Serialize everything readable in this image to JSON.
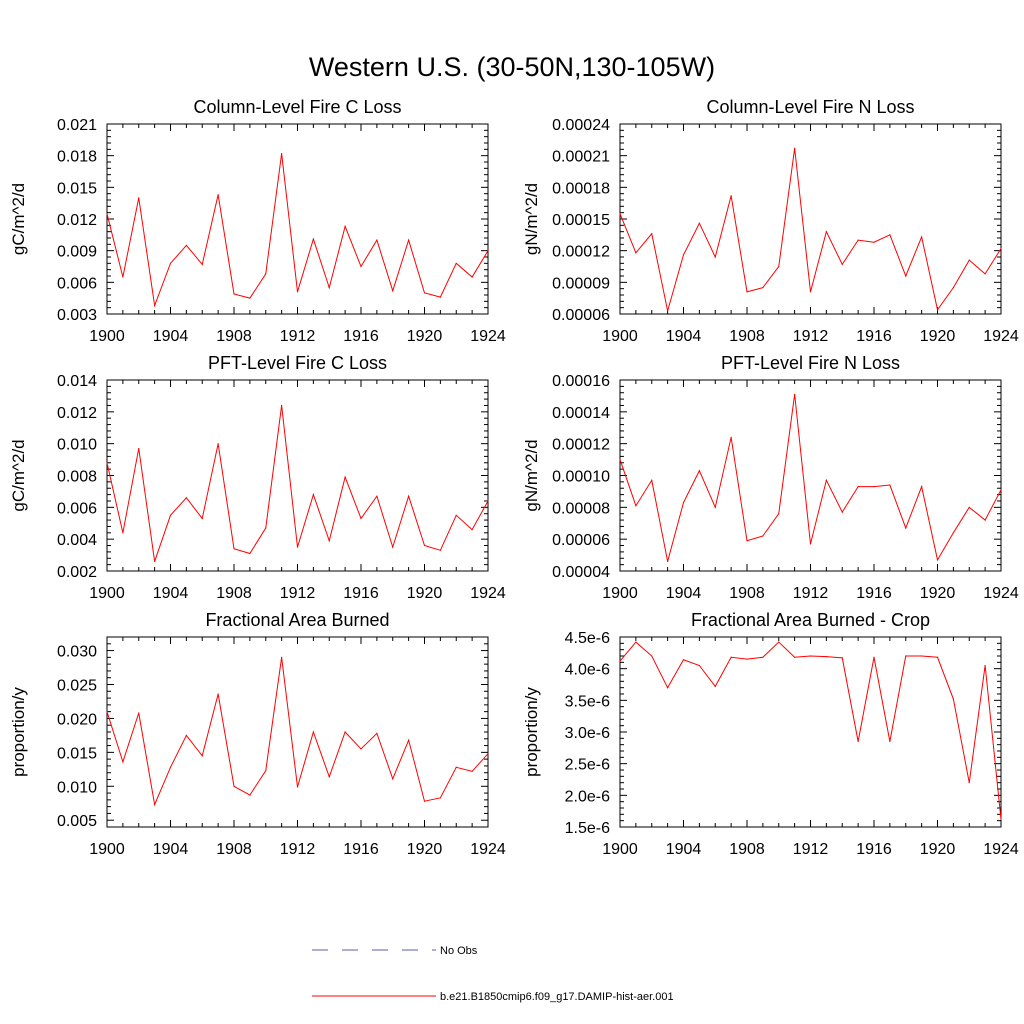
{
  "figure": {
    "title": "Western U.S. (30-50N,130-105W)"
  },
  "legend": {
    "entries": [
      {
        "label": "No Obs",
        "color": "#5b5ba8",
        "dashed": true
      },
      {
        "label": "b.e21.B1850cmip6.f09_g17.DAMIP-hist-aer.001",
        "color": "#ff0000",
        "dashed": false
      }
    ]
  },
  "colors": {
    "series": "#ff0000",
    "axes": "#000000"
  },
  "chart_data": [
    {
      "type": "line",
      "title": "Column-Level Fire C Loss",
      "ylabel": "gC/m^2/d",
      "xlabel": "",
      "xlim": [
        1900,
        1924
      ],
      "ylim": [
        0.003,
        0.021
      ],
      "x_ticks": [
        1900,
        1904,
        1908,
        1912,
        1916,
        1920,
        1924
      ],
      "x_tick_labels": [
        "1900",
        "1904",
        "1908",
        "1912",
        "1916",
        "1920",
        "1924"
      ],
      "y_ticks": [
        0.003,
        0.006,
        0.009,
        0.012,
        0.015,
        0.018,
        0.021
      ],
      "y_tick_labels": [
        "0.003",
        "0.006",
        "0.009",
        "0.012",
        "0.015",
        "0.018",
        "0.021"
      ],
      "series": [
        {
          "name": "b.e21.B1850cmip6.f09_g17.DAMIP-hist-aer.001",
          "x": [
            1900,
            1901,
            1902,
            1903,
            1904,
            1905,
            1906,
            1907,
            1908,
            1909,
            1910,
            1911,
            1912,
            1913,
            1914,
            1915,
            1916,
            1917,
            1918,
            1919,
            1920,
            1921,
            1922,
            1923,
            1924
          ],
          "y": [
            0.0125,
            0.0065,
            0.014,
            0.0038,
            0.0078,
            0.0095,
            0.0077,
            0.0143,
            0.0049,
            0.0045,
            0.0068,
            0.0182,
            0.0051,
            0.0101,
            0.0055,
            0.0113,
            0.0075,
            0.01,
            0.0052,
            0.01,
            0.005,
            0.0046,
            0.0078,
            0.0065,
            0.009
          ]
        }
      ]
    },
    {
      "type": "line",
      "title": "Column-Level Fire N Loss",
      "ylabel": "gN/m^2/d",
      "xlabel": "",
      "xlim": [
        1900,
        1924
      ],
      "ylim": [
        6e-05,
        0.00024
      ],
      "x_ticks": [
        1900,
        1904,
        1908,
        1912,
        1916,
        1920,
        1924
      ],
      "x_tick_labels": [
        "1900",
        "1904",
        "1908",
        "1912",
        "1916",
        "1920",
        "1924"
      ],
      "y_ticks": [
        6e-05,
        9e-05,
        0.00012,
        0.00015,
        0.00018,
        0.00021,
        0.00024
      ],
      "y_tick_labels": [
        "0.00006",
        "0.00009",
        "0.00012",
        "0.00015",
        "0.00018",
        "0.00021",
        "0.00024"
      ],
      "series": [
        {
          "name": "b.e21.B1850cmip6.f09_g17.DAMIP-hist-aer.001",
          "x": [
            1900,
            1901,
            1902,
            1903,
            1904,
            1905,
            1906,
            1907,
            1908,
            1909,
            1910,
            1911,
            1912,
            1913,
            1914,
            1915,
            1916,
            1917,
            1918,
            1919,
            1920,
            1921,
            1922,
            1923,
            1924
          ],
          "y": [
            0.000155,
            0.000118,
            0.000136,
            6.3e-05,
            0.000116,
            0.000146,
            0.000114,
            0.000172,
            8.1e-05,
            8.5e-05,
            0.000105,
            0.000217,
            8.1e-05,
            0.000138,
            0.000107,
            0.00013,
            0.000128,
            0.000135,
            9.6e-05,
            0.000133,
            6.4e-05,
            8.5e-05,
            0.000111,
            9.8e-05,
            0.000122
          ]
        }
      ]
    },
    {
      "type": "line",
      "title": "PFT-Level Fire C Loss",
      "ylabel": "gC/m^2/d",
      "xlabel": "",
      "xlim": [
        1900,
        1924
      ],
      "ylim": [
        0.002,
        0.014
      ],
      "x_ticks": [
        1900,
        1904,
        1908,
        1912,
        1916,
        1920,
        1924
      ],
      "x_tick_labels": [
        "1900",
        "1904",
        "1908",
        "1912",
        "1916",
        "1920",
        "1924"
      ],
      "y_ticks": [
        0.002,
        0.004,
        0.006,
        0.008,
        0.01,
        0.012,
        0.014
      ],
      "y_tick_labels": [
        "0.002",
        "0.004",
        "0.006",
        "0.008",
        "0.010",
        "0.012",
        "0.014"
      ],
      "series": [
        {
          "name": "b.e21.B1850cmip6.f09_g17.DAMIP-hist-aer.001",
          "x": [
            1900,
            1901,
            1902,
            1903,
            1904,
            1905,
            1906,
            1907,
            1908,
            1909,
            1910,
            1911,
            1912,
            1913,
            1914,
            1915,
            1916,
            1917,
            1918,
            1919,
            1920,
            1921,
            1922,
            1923,
            1924
          ],
          "y": [
            0.0088,
            0.0044,
            0.0097,
            0.0026,
            0.0055,
            0.0066,
            0.0053,
            0.01,
            0.0034,
            0.0031,
            0.0047,
            0.0124,
            0.0035,
            0.0068,
            0.0039,
            0.0079,
            0.0053,
            0.0067,
            0.0035,
            0.0067,
            0.0036,
            0.0033,
            0.0055,
            0.0046,
            0.0064
          ]
        }
      ]
    },
    {
      "type": "line",
      "title": "PFT-Level Fire N Loss",
      "ylabel": "gN/m^2/d",
      "xlabel": "",
      "xlim": [
        1900,
        1924
      ],
      "ylim": [
        4e-05,
        0.00016
      ],
      "x_ticks": [
        1900,
        1904,
        1908,
        1912,
        1916,
        1920,
        1924
      ],
      "x_tick_labels": [
        "1900",
        "1904",
        "1908",
        "1912",
        "1916",
        "1920",
        "1924"
      ],
      "y_ticks": [
        4e-05,
        6e-05,
        8e-05,
        0.0001,
        0.00012,
        0.00014,
        0.00016
      ],
      "y_tick_labels": [
        "0.00004",
        "0.00006",
        "0.00008",
        "0.00010",
        "0.00012",
        "0.00014",
        "0.00016"
      ],
      "series": [
        {
          "name": "b.e21.B1850cmip6.f09_g17.DAMIP-hist-aer.001",
          "x": [
            1900,
            1901,
            1902,
            1903,
            1904,
            1905,
            1906,
            1907,
            1908,
            1909,
            1910,
            1911,
            1912,
            1913,
            1914,
            1915,
            1916,
            1917,
            1918,
            1919,
            1920,
            1921,
            1922,
            1923,
            1924
          ],
          "y": [
            0.00011,
            8.1e-05,
            9.7e-05,
            4.6e-05,
            8.3e-05,
            0.000103,
            8e-05,
            0.000124,
            5.9e-05,
            6.2e-05,
            7.6e-05,
            0.000151,
            5.7e-05,
            9.7e-05,
            7.7e-05,
            9.3e-05,
            9.3e-05,
            9.4e-05,
            6.7e-05,
            9.3e-05,
            4.7e-05,
            6.4e-05,
            8e-05,
            7.2e-05,
            9.1e-05
          ]
        }
      ]
    },
    {
      "type": "line",
      "title": "Fractional Area Burned",
      "ylabel": "proportion/y",
      "xlabel": "",
      "xlim": [
        1900,
        1924
      ],
      "ylim": [
        0.004,
        0.032
      ],
      "x_ticks": [
        1900,
        1904,
        1908,
        1912,
        1916,
        1920,
        1924
      ],
      "x_tick_labels": [
        "1900",
        "1904",
        "1908",
        "1912",
        "1916",
        "1920",
        "1924"
      ],
      "y_ticks": [
        0.005,
        0.01,
        0.015,
        0.02,
        0.025,
        0.03
      ],
      "y_tick_labels": [
        "0.005",
        "0.010",
        "0.015",
        "0.020",
        "0.025",
        "0.030"
      ],
      "series": [
        {
          "name": "b.e21.B1850cmip6.f09_g17.DAMIP-hist-aer.001",
          "x": [
            1900,
            1901,
            1902,
            1903,
            1904,
            1905,
            1906,
            1907,
            1908,
            1909,
            1910,
            1911,
            1912,
            1913,
            1914,
            1915,
            1916,
            1917,
            1918,
            1919,
            1920,
            1921,
            1922,
            1923,
            1924
          ],
          "y": [
            0.021,
            0.0136,
            0.0208,
            0.0073,
            0.0128,
            0.0175,
            0.0145,
            0.0236,
            0.01,
            0.0087,
            0.0123,
            0.029,
            0.0099,
            0.018,
            0.0114,
            0.018,
            0.0155,
            0.0178,
            0.0111,
            0.0168,
            0.0078,
            0.0083,
            0.0128,
            0.0122,
            0.0148
          ]
        }
      ]
    },
    {
      "type": "line",
      "title": "Fractional Area Burned - Crop",
      "ylabel": "proportion/y",
      "xlabel": "",
      "xlim": [
        1900,
        1924
      ],
      "ylim": [
        1.5e-06,
        4.5e-06
      ],
      "x_ticks": [
        1900,
        1904,
        1908,
        1912,
        1916,
        1920,
        1924
      ],
      "x_tick_labels": [
        "1900",
        "1904",
        "1908",
        "1912",
        "1916",
        "1920",
        "1924"
      ],
      "y_ticks": [
        1.5e-06,
        2e-06,
        2.5e-06,
        3e-06,
        3.5e-06,
        4e-06,
        4.5e-06
      ],
      "y_tick_labels": [
        "1.5e-6",
        "2.0e-6",
        "2.5e-6",
        "3.0e-6",
        "3.5e-6",
        "4.0e-6",
        "4.5e-6"
      ],
      "series": [
        {
          "name": "b.e21.B1850cmip6.f09_g17.DAMIP-hist-aer.001",
          "x": [
            1900,
            1901,
            1902,
            1903,
            1904,
            1905,
            1906,
            1907,
            1908,
            1909,
            1910,
            1911,
            1912,
            1913,
            1914,
            1915,
            1916,
            1917,
            1918,
            1919,
            1920,
            1921,
            1922,
            1923,
            1924
          ],
          "y": [
            4.12e-06,
            4.42e-06,
            4.2e-06,
            3.7e-06,
            4.14e-06,
            4.05e-06,
            3.72e-06,
            4.18e-06,
            4.15e-06,
            4.18e-06,
            4.42e-06,
            4.18e-06,
            4.2e-06,
            4.19e-06,
            4.17e-06,
            2.85e-06,
            4.18e-06,
            2.85e-06,
            4.2e-06,
            4.2e-06,
            4.18e-06,
            3.52e-06,
            2.2e-06,
            4.05e-06,
            1.62e-06
          ]
        }
      ]
    }
  ]
}
